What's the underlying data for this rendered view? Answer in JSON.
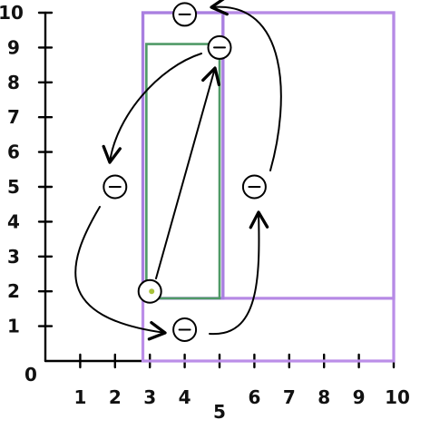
{
  "axes": {
    "y_ticks": [
      "1",
      "2",
      "3",
      "4",
      "5",
      "6",
      "7",
      "8",
      "9",
      "10"
    ],
    "x_ticks": [
      "1",
      "2",
      "3",
      "4",
      "5",
      "6",
      "7",
      "8",
      "9",
      "10"
    ],
    "origin": "0",
    "x_range": [
      0,
      10
    ],
    "y_range": [
      0,
      10
    ]
  },
  "rectangles": [
    {
      "name": "outer-rect",
      "x0": 2.8,
      "y0": 0,
      "x1": 10,
      "y1": 10,
      "color": "#bb8ee8"
    },
    {
      "name": "right-rect",
      "x0": 5.1,
      "y0": 1.8,
      "x1": 10,
      "y1": 10,
      "color": "#b68ae5"
    },
    {
      "name": "tall-rect",
      "x0": 2.8,
      "y0": 1.8,
      "x1": 5.1,
      "y1": 10,
      "color": "#a97fe0"
    },
    {
      "name": "inner-green-rect",
      "x0": 2.9,
      "y0": 1.8,
      "x1": 5.0,
      "y1": 9.1,
      "color": "#4f9a66"
    }
  ],
  "nodes": [
    {
      "name": "node-top",
      "x": 4,
      "y": 9.95,
      "mark": "−"
    },
    {
      "name": "node-upper-right",
      "x": 5,
      "y": 9,
      "mark": "−"
    },
    {
      "name": "node-left",
      "x": 2,
      "y": 5,
      "mark": "−"
    },
    {
      "name": "node-right",
      "x": 6,
      "y": 5,
      "mark": "−"
    },
    {
      "name": "node-lower-left",
      "x": 3,
      "y": 2,
      "mark": "·"
    },
    {
      "name": "node-bottom",
      "x": 4,
      "y": 0.9,
      "mark": "−"
    }
  ],
  "arrows": [
    {
      "name": "arrow-upper-right-to-left",
      "from": "node-upper-right",
      "to": "node-left"
    },
    {
      "name": "arrow-left-to-bottom",
      "from": "node-left",
      "to": "node-bottom"
    },
    {
      "name": "arrow-bottom-to-right",
      "from": "node-bottom",
      "to": "node-right"
    },
    {
      "name": "arrow-right-to-top",
      "from": "node-right",
      "to": "node-top"
    },
    {
      "name": "arrow-lower-left-to-upper-right",
      "from": "node-lower-left",
      "to": "node-upper-right"
    }
  ]
}
